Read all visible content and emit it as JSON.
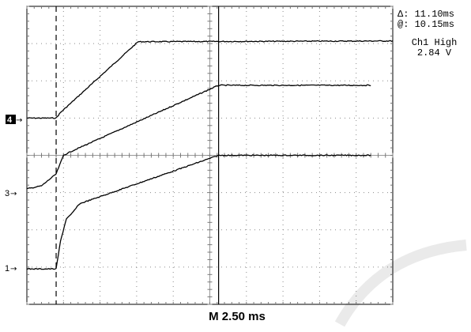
{
  "readout": {
    "delta_label": "Δ: 11.10ms",
    "at_label": "@: 10.15ms",
    "channel_label": "Ch1 High",
    "channel_value": "2.84 V"
  },
  "timebase": "M 2.50 ms",
  "markers": {
    "ch4": "4",
    "ch3": "3",
    "ch1": "1"
  },
  "chart_data": {
    "type": "line",
    "title": "",
    "xlabel": "",
    "ylabel": "",
    "x_unit": "ms",
    "x_per_division": 2.5,
    "x_divisions": 10,
    "y_divisions": 8,
    "xlim": [
      0,
      25
    ],
    "ylim_div": [
      -4,
      4
    ],
    "grid": true,
    "cursors_ms": [
      2.0,
      13.1
    ],
    "series": [
      {
        "name": "4",
        "x": [
          0,
          2.0,
          2.3,
          7.6,
          25
        ],
        "y": [
          1.0,
          1.0,
          1.15,
          3.05,
          3.07
        ]
      },
      {
        "name": "3",
        "x": [
          0,
          1.0,
          2.0,
          2.5,
          3.0,
          13.1,
          23.5
        ],
        "y": [
          -0.9,
          -0.82,
          -0.5,
          0.0,
          0.1,
          1.88,
          1.88
        ]
      },
      {
        "name": "1",
        "x": [
          0,
          2.0,
          2.3,
          2.7,
          3.0,
          3.6,
          13.1,
          23.5
        ],
        "y": [
          -3.05,
          -3.05,
          -2.3,
          -1.7,
          -1.6,
          -1.3,
          0.0,
          0.0
        ]
      }
    ],
    "colors": {
      "trace": "#000000",
      "grid": "#8a8a8a",
      "background": "#ffffff"
    }
  }
}
